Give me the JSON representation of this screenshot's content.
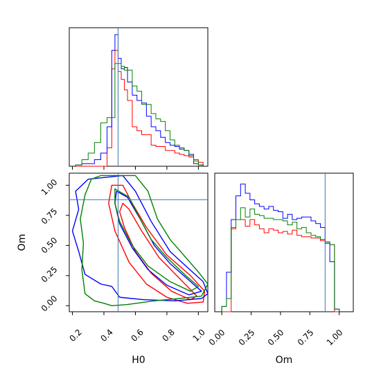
{
  "chart_data": {
    "type": "corner",
    "parameters": [
      "H0",
      "Om"
    ],
    "truth": {
      "H0": 0.49,
      "Om": 0.88
    },
    "colors": {
      "red": "#ff0000",
      "blue": "#0000ff",
      "green": "#008000",
      "truth": "#3b75af"
    },
    "panels": [
      {
        "panel": "H0-histogram",
        "type": "histogram",
        "x_range": [
          0.18,
          1.06
        ],
        "y_range": [
          0,
          1
        ],
        "bin_edges": [
          0.22,
          0.26,
          0.3,
          0.34,
          0.38,
          0.42,
          0.45,
          0.47,
          0.49,
          0.51,
          0.53,
          0.55,
          0.58,
          0.61,
          0.64,
          0.67,
          0.7,
          0.73,
          0.76,
          0.79,
          0.82,
          0.85,
          0.88,
          0.91,
          0.94,
          0.97,
          1.0,
          1.03
        ],
        "series": [
          {
            "name": "red",
            "values": [
              0,
              0,
              0,
              0,
              0,
              0.14,
              0.74,
              0.88,
              0.72,
              0.66,
              0.58,
              0.5,
              0.3,
              0.27,
              0.24,
              0.24,
              0.16,
              0.15,
              0.15,
              0.12,
              0.12,
              0.1,
              0.09,
              0.08,
              0.07,
              0.05,
              0.03
            ]
          },
          {
            "name": "blue",
            "values": [
              0.01,
              0.02,
              0.02,
              0.05,
              0.1,
              0.3,
              0.88,
              1.0,
              0.82,
              0.74,
              0.75,
              0.64,
              0.54,
              0.5,
              0.48,
              0.38,
              0.3,
              0.27,
              0.22,
              0.18,
              0.16,
              0.15,
              0.13,
              0.12,
              0.09,
              0.02,
              0.01
            ]
          },
          {
            "name": "green",
            "values": [
              0.01,
              0.05,
              0.1,
              0.18,
              0.33,
              0.37,
              0.37,
              0.78,
              0.78,
              0.76,
              0.73,
              0.73,
              0.61,
              0.57,
              0.47,
              0.47,
              0.4,
              0.36,
              0.34,
              0.27,
              0.2,
              0.16,
              0.14,
              0.12,
              0.08,
              0.04,
              0.01
            ]
          }
        ]
      },
      {
        "panel": "Om-histogram",
        "type": "histogram",
        "x_range": [
          -0.06,
          1.12
        ],
        "y_range": [
          0,
          1
        ],
        "bin_edges": [
          0.0,
          0.04,
          0.08,
          0.12,
          0.16,
          0.2,
          0.24,
          0.28,
          0.32,
          0.36,
          0.4,
          0.44,
          0.48,
          0.52,
          0.56,
          0.6,
          0.64,
          0.68,
          0.72,
          0.76,
          0.8,
          0.84,
          0.88,
          0.92,
          0.96,
          1.0
        ],
        "series": [
          {
            "name": "red",
            "values": [
              0,
              0,
              0.63,
              0.7,
              0.7,
              0.65,
              0.7,
              0.66,
              0.63,
              0.6,
              0.63,
              0.62,
              0.6,
              0.61,
              0.59,
              0.62,
              0.58,
              0.57,
              0.57,
              0.56,
              0.56,
              0.54,
              0.53,
              0.51,
              0
            ]
          },
          {
            "name": "blue",
            "values": [
              0.04,
              0.3,
              0.7,
              0.88,
              0.97,
              0.9,
              0.85,
              0.82,
              0.8,
              0.78,
              0.8,
              0.77,
              0.76,
              0.71,
              0.74,
              0.7,
              0.71,
              0.72,
              0.72,
              0.69,
              0.67,
              0.64,
              0.52,
              0.38,
              0.02
            ]
          },
          {
            "name": "green",
            "values": [
              0.04,
              0.1,
              0.64,
              0.7,
              0.79,
              0.72,
              0.78,
              0.74,
              0.73,
              0.71,
              0.71,
              0.7,
              0.7,
              0.69,
              0.66,
              0.68,
              0.63,
              0.64,
              0.6,
              0.58,
              0.57,
              0.55,
              0.53,
              0.51,
              0.02
            ]
          }
        ]
      },
      {
        "panel": "H0-Om-contour",
        "type": "contour",
        "x_range": [
          0.18,
          1.06
        ],
        "y_range": [
          -0.05,
          1.1
        ],
        "series": [
          {
            "name": "red",
            "contours": [
              [
                [
                  0.45,
                  1.0
                ],
                [
                  0.52,
                  1.0
                ],
                [
                  0.58,
                  0.85
                ],
                [
                  0.67,
                  0.65
                ],
                [
                  0.8,
                  0.42
                ],
                [
                  0.95,
                  0.25
                ],
                [
                  1.04,
                  0.12
                ],
                [
                  1.03,
                  0.03
                ],
                [
                  0.93,
                  0.02
                ],
                [
                  0.8,
                  0.07
                ],
                [
                  0.67,
                  0.18
                ],
                [
                  0.56,
                  0.36
                ],
                [
                  0.47,
                  0.62
                ],
                [
                  0.43,
                  0.85
                ],
                [
                  0.45,
                  1.0
                ]
              ],
              [
                [
                  0.52,
                  0.85
                ],
                [
                  0.56,
                  0.8
                ],
                [
                  0.64,
                  0.62
                ],
                [
                  0.75,
                  0.4
                ],
                [
                  0.9,
                  0.2
                ],
                [
                  0.99,
                  0.08
                ],
                [
                  0.95,
                  0.05
                ],
                [
                  0.83,
                  0.12
                ],
                [
                  0.7,
                  0.27
                ],
                [
                  0.6,
                  0.45
                ],
                [
                  0.53,
                  0.65
                ],
                [
                  0.5,
                  0.78
                ],
                [
                  0.52,
                  0.85
                ]
              ]
            ]
          },
          {
            "name": "blue",
            "contours": [
              [
                [
                  0.3,
                  1.05
                ],
                [
                  0.52,
                  1.08
                ],
                [
                  0.6,
                  0.95
                ],
                [
                  0.7,
                  0.7
                ],
                [
                  0.82,
                  0.45
                ],
                [
                  0.92,
                  0.33
                ],
                [
                  1.03,
                  0.2
                ],
                [
                  1.06,
                  0.1
                ],
                [
                  1.02,
                  0.06
                ],
                [
                  0.85,
                  0.04
                ],
                [
                  0.65,
                  0.05
                ],
                [
                  0.5,
                  0.07
                ],
                [
                  0.45,
                  0.16
                ],
                [
                  0.38,
                  0.18
                ],
                [
                  0.28,
                  0.26
                ],
                [
                  0.24,
                  0.45
                ],
                [
                  0.2,
                  0.62
                ],
                [
                  0.24,
                  0.8
                ],
                [
                  0.22,
                  0.95
                ],
                [
                  0.3,
                  1.05
                ]
              ],
              [
                [
                  0.48,
                  0.95
                ],
                [
                  0.55,
                  0.9
                ],
                [
                  0.63,
                  0.72
                ],
                [
                  0.72,
                  0.5
                ],
                [
                  0.82,
                  0.35
                ],
                [
                  0.95,
                  0.2
                ],
                [
                  1.02,
                  0.12
                ],
                [
                  0.94,
                  0.09
                ],
                [
                  0.8,
                  0.17
                ],
                [
                  0.68,
                  0.3
                ],
                [
                  0.58,
                  0.48
                ],
                [
                  0.5,
                  0.68
                ],
                [
                  0.47,
                  0.85
                ],
                [
                  0.48,
                  0.95
                ]
              ]
            ]
          },
          {
            "name": "green",
            "contours": [
              [
                [
                  0.38,
                  1.08
                ],
                [
                  0.6,
                  1.08
                ],
                [
                  0.68,
                  0.95
                ],
                [
                  0.74,
                  0.72
                ],
                [
                  0.82,
                  0.55
                ],
                [
                  0.92,
                  0.4
                ],
                [
                  1.0,
                  0.28
                ],
                [
                  1.06,
                  0.18
                ],
                [
                  1.02,
                  0.08
                ],
                [
                  0.88,
                  0.06
                ],
                [
                  0.72,
                  0.04
                ],
                [
                  0.55,
                  0.01
                ],
                [
                  0.45,
                  0.0
                ],
                [
                  0.4,
                  0.02
                ],
                [
                  0.34,
                  0.04
                ],
                [
                  0.28,
                  0.1
                ],
                [
                  0.26,
                  0.3
                ],
                [
                  0.27,
                  0.52
                ],
                [
                  0.25,
                  0.72
                ],
                [
                  0.28,
                  0.92
                ],
                [
                  0.32,
                  1.05
                ],
                [
                  0.38,
                  1.08
                ]
              ],
              [
                [
                  0.47,
                  0.97
                ],
                [
                  0.56,
                  0.9
                ],
                [
                  0.63,
                  0.72
                ],
                [
                  0.7,
                  0.55
                ],
                [
                  0.8,
                  0.4
                ],
                [
                  0.92,
                  0.25
                ],
                [
                  1.0,
                  0.16
                ],
                [
                  0.95,
                  0.12
                ],
                [
                  0.82,
                  0.2
                ],
                [
                  0.68,
                  0.33
                ],
                [
                  0.58,
                  0.5
                ],
                [
                  0.5,
                  0.7
                ],
                [
                  0.47,
                  0.85
                ],
                [
                  0.47,
                  0.97
                ]
              ]
            ]
          }
        ]
      }
    ],
    "x_ticks": {
      "H0": [
        "0.2",
        "0.4",
        "0.6",
        "0.8",
        "1.0"
      ],
      "Om": [
        "0.00",
        "0.25",
        "0.50",
        "0.75",
        "1.00"
      ]
    },
    "y_ticks": {
      "Om": [
        "0.00",
        "0.25",
        "0.50",
        "0.75",
        "1.00"
      ]
    },
    "xlabels": {
      "H0": "H0",
      "Om": "Om"
    },
    "ylabel": "Om"
  }
}
